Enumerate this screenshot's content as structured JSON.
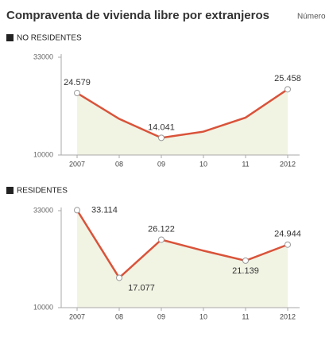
{
  "title": "Compraventa de vivienda libre por extranjeros",
  "subtitle": "Número",
  "chart_data": [
    {
      "type": "line",
      "title": "NO RESIDENTES",
      "categories": [
        "2007",
        "08",
        "09",
        "10",
        "11",
        "2012"
      ],
      "values": [
        24579,
        18500,
        14041,
        15500,
        18800,
        25458
      ],
      "value_labels": [
        "24.579",
        null,
        "14.041",
        null,
        null,
        "25.458"
      ],
      "color": "#d9533a",
      "fill": "#f1f3e3",
      "ylim": [
        10000,
        33000
      ],
      "yticks": [
        10000,
        33000
      ]
    },
    {
      "type": "line",
      "title": "RESIDENTES",
      "categories": [
        "2007",
        "08",
        "09",
        "10",
        "11",
        "2012"
      ],
      "values": [
        33114,
        17077,
        26122,
        23500,
        21139,
        24944
      ],
      "value_labels": [
        "33.114",
        "17.077",
        "26.122",
        null,
        "21.139",
        "24.944"
      ],
      "color": "#d9533a",
      "fill": "#f1f3e3",
      "ylim": [
        10000,
        33000
      ],
      "yticks": [
        10000,
        33000
      ]
    }
  ]
}
